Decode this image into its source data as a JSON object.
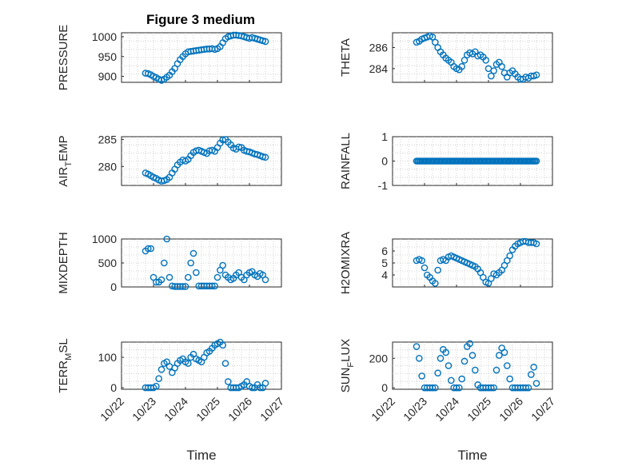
{
  "figure_title": "Figure 3 medium",
  "colors": {
    "marker": "#0072BD",
    "axis": "#262626",
    "grid": "#c8c8c8"
  },
  "chart_data": [
    {
      "id": "pressure",
      "type": "scatter",
      "title": "Figure 3 medium",
      "ylabel": "PRESSURE",
      "ylim": [
        885,
        1010
      ],
      "yticks": [
        900,
        950,
        1000
      ],
      "yticklabels": [
        "900",
        "950",
        "1000"
      ],
      "xlim": [
        "10/22",
        "10/27"
      ],
      "xticklabels": [],
      "x": [
        "10/22 18:00",
        "10/22 20:00",
        "10/22 22:00",
        "10/23 00:00",
        "10/23 02:00",
        "10/23 04:00",
        "10/23 06:00",
        "10/23 08:00",
        "10/23 10:00",
        "10/23 12:00",
        "10/23 14:00",
        "10/23 16:00",
        "10/23 18:00",
        "10/23 20:00",
        "10/23 22:00",
        "10/24 00:00",
        "10/24 02:00",
        "10/24 04:00",
        "10/24 06:00",
        "10/24 08:00",
        "10/24 10:00",
        "10/24 12:00",
        "10/24 14:00",
        "10/24 16:00",
        "10/24 18:00",
        "10/24 20:00",
        "10/24 22:00",
        "10/25 00:00",
        "10/25 02:00",
        "10/25 04:00",
        "10/25 06:00",
        "10/25 08:00",
        "10/25 10:00",
        "10/25 12:00",
        "10/25 14:00",
        "10/25 16:00",
        "10/25 18:00",
        "10/25 20:00",
        "10/25 22:00",
        "10/26 00:00",
        "10/26 02:00",
        "10/26 04:00",
        "10/26 06:00",
        "10/26 08:00",
        "10/26 10:00",
        "10/26 12:00"
      ],
      "y": [
        908,
        907,
        904,
        900,
        897,
        893,
        890,
        893,
        898,
        903,
        912,
        920,
        932,
        942,
        950,
        957,
        962,
        963,
        964,
        965,
        966,
        967,
        968,
        969,
        969,
        970,
        968,
        970,
        975,
        985,
        995,
        1000,
        1002,
        1004,
        1004,
        1003,
        1002,
        1000,
        998,
        996,
        998,
        996,
        994,
        992,
        990,
        988
      ]
    },
    {
      "id": "theta",
      "type": "scatter",
      "ylabel": "THETA",
      "ylim": [
        282.7,
        287.4
      ],
      "yticks": [
        284,
        286
      ],
      "yticklabels": [
        "284",
        "286"
      ],
      "xlim": [
        "10/22",
        "10/27"
      ],
      "xticklabels": [],
      "x": [
        "10/22 18:00",
        "10/22 20:00",
        "10/22 22:00",
        "10/23 00:00",
        "10/23 02:00",
        "10/23 04:00",
        "10/23 06:00",
        "10/23 08:00",
        "10/23 10:00",
        "10/23 12:00",
        "10/23 14:00",
        "10/23 16:00",
        "10/23 18:00",
        "10/23 20:00",
        "10/23 22:00",
        "10/24 00:00",
        "10/24 02:00",
        "10/24 04:00",
        "10/24 06:00",
        "10/24 08:00",
        "10/24 10:00",
        "10/24 12:00",
        "10/24 14:00",
        "10/24 16:00",
        "10/24 18:00",
        "10/24 20:00",
        "10/24 22:00",
        "10/25 00:00",
        "10/25 02:00",
        "10/25 04:00",
        "10/25 06:00",
        "10/25 08:00",
        "10/25 10:00",
        "10/25 12:00",
        "10/25 14:00",
        "10/25 16:00",
        "10/25 18:00",
        "10/25 20:00",
        "10/25 22:00",
        "10/26 00:00",
        "10/26 02:00",
        "10/26 04:00",
        "10/26 06:00",
        "10/26 08:00",
        "10/26 10:00",
        "10/26 12:00"
      ],
      "y": [
        286.5,
        286.6,
        286.8,
        286.9,
        287.0,
        287.1,
        287.0,
        286.5,
        286.0,
        285.6,
        285.3,
        285.0,
        284.8,
        284.6,
        284.2,
        284.0,
        283.9,
        284.2,
        284.8,
        285.3,
        285.5,
        285.4,
        285.6,
        285.2,
        285.3,
        285.1,
        284.8,
        284.0,
        283.3,
        283.8,
        284.4,
        284.6,
        284.2,
        283.6,
        283.2,
        283.6,
        283.8,
        283.5,
        283.2,
        283.0,
        283.0,
        283.2,
        283.1,
        283.3,
        283.3,
        283.4
      ]
    },
    {
      "id": "air_temp",
      "type": "scatter",
      "ylabel": "AIR",
      "ylabel_sub": "T",
      "ylabel_rest": "EMP",
      "ylim": [
        276.5,
        285.5
      ],
      "yticks": [
        280,
        285
      ],
      "yticklabels": [
        "280",
        "285"
      ],
      "xlim": [
        "10/22",
        "10/27"
      ],
      "xticklabels": [],
      "x": [
        "10/22 18:00",
        "10/22 20:00",
        "10/22 22:00",
        "10/23 00:00",
        "10/23 02:00",
        "10/23 04:00",
        "10/23 06:00",
        "10/23 08:00",
        "10/23 10:00",
        "10/23 12:00",
        "10/23 14:00",
        "10/23 16:00",
        "10/23 18:00",
        "10/23 20:00",
        "10/23 22:00",
        "10/24 00:00",
        "10/24 02:00",
        "10/24 04:00",
        "10/24 06:00",
        "10/24 08:00",
        "10/24 10:00",
        "10/24 12:00",
        "10/24 14:00",
        "10/24 16:00",
        "10/24 18:00",
        "10/24 20:00",
        "10/24 22:00",
        "10/25 00:00",
        "10/25 02:00",
        "10/25 04:00",
        "10/25 06:00",
        "10/25 08:00",
        "10/25 10:00",
        "10/25 12:00",
        "10/25 14:00",
        "10/25 16:00",
        "10/25 18:00",
        "10/25 20:00",
        "10/25 22:00",
        "10/26 00:00",
        "10/26 02:00",
        "10/26 04:00",
        "10/26 06:00",
        "10/26 08:00",
        "10/26 10:00",
        "10/26 12:00"
      ],
      "y": [
        278.8,
        278.6,
        278.3,
        278.0,
        277.8,
        277.5,
        277.3,
        277.4,
        277.6,
        278.0,
        278.8,
        279.5,
        280.3,
        280.8,
        281.2,
        281.0,
        281.3,
        282.0,
        282.6,
        282.9,
        283.0,
        282.8,
        282.6,
        282.4,
        282.9,
        283.0,
        282.8,
        283.5,
        284.3,
        284.9,
        285.0,
        284.5,
        284.0,
        283.4,
        283.2,
        283.6,
        283.5,
        283.0,
        282.8,
        282.7,
        282.5,
        282.3,
        282.2,
        282.0,
        281.8,
        281.7
      ]
    },
    {
      "id": "rainfall",
      "type": "scatter",
      "ylabel": "RAINFALL",
      "ylim": [
        -1,
        1
      ],
      "yticks": [
        -1,
        0,
        1
      ],
      "yticklabels": [
        "-1",
        "0",
        "1"
      ],
      "xlim": [
        "10/22",
        "10/27"
      ],
      "xticklabels": [],
      "x_range": [
        "10/22 18:00",
        "10/26 12:00"
      ],
      "x_step_hours": 1,
      "y_constant": 0
    },
    {
      "id": "mixdepth",
      "type": "scatter",
      "ylabel": "MIXDEPTH",
      "ylim": [
        0,
        1000
      ],
      "yticks": [
        0,
        500,
        1000
      ],
      "yticklabels": [
        "0",
        "500",
        "1000"
      ],
      "xlim": [
        "10/22",
        "10/27"
      ],
      "xticklabels": [],
      "x": [
        "10/22 18:00",
        "10/22 20:00",
        "10/22 22:00",
        "10/23 00:00",
        "10/23 02:00",
        "10/23 04:00",
        "10/23 06:00",
        "10/23 08:00",
        "10/23 10:00",
        "10/23 12:00",
        "10/23 14:00",
        "10/23 16:00",
        "10/23 18:00",
        "10/23 20:00",
        "10/23 22:00",
        "10/24 00:00",
        "10/24 02:00",
        "10/24 04:00",
        "10/24 06:00",
        "10/24 08:00",
        "10/24 10:00",
        "10/24 12:00",
        "10/24 14:00",
        "10/24 16:00",
        "10/24 18:00",
        "10/24 20:00",
        "10/24 22:00",
        "10/25 00:00",
        "10/25 02:00",
        "10/25 04:00",
        "10/25 06:00",
        "10/25 08:00",
        "10/25 10:00",
        "10/25 12:00",
        "10/25 14:00",
        "10/25 16:00",
        "10/25 18:00",
        "10/25 20:00",
        "10/25 22:00",
        "10/26 00:00",
        "10/26 02:00",
        "10/26 04:00",
        "10/26 06:00",
        "10/26 08:00",
        "10/26 10:00",
        "10/26 12:00"
      ],
      "y": [
        750,
        800,
        800,
        200,
        100,
        100,
        150,
        500,
        1000,
        200,
        20,
        10,
        10,
        10,
        10,
        10,
        200,
        500,
        700,
        300,
        20,
        20,
        20,
        20,
        20,
        20,
        20,
        200,
        350,
        450,
        250,
        200,
        150,
        180,
        250,
        300,
        200,
        150,
        250,
        300,
        320,
        250,
        220,
        280,
        250,
        150
      ]
    },
    {
      "id": "h2omixra",
      "type": "scatter",
      "ylabel": "H2OMIXRA",
      "ylim": [
        3,
        7
      ],
      "yticks": [
        4,
        5,
        6
      ],
      "yticklabels": [
        "4",
        "5",
        "6"
      ],
      "xlim": [
        "10/22",
        "10/27"
      ],
      "xticklabels": [],
      "x": [
        "10/22 18:00",
        "10/22 20:00",
        "10/22 22:00",
        "10/23 00:00",
        "10/23 02:00",
        "10/23 04:00",
        "10/23 06:00",
        "10/23 08:00",
        "10/23 10:00",
        "10/23 12:00",
        "10/23 14:00",
        "10/23 16:00",
        "10/23 18:00",
        "10/23 20:00",
        "10/23 22:00",
        "10/24 00:00",
        "10/24 02:00",
        "10/24 04:00",
        "10/24 06:00",
        "10/24 08:00",
        "10/24 10:00",
        "10/24 12:00",
        "10/24 14:00",
        "10/24 16:00",
        "10/24 18:00",
        "10/24 20:00",
        "10/24 22:00",
        "10/25 00:00",
        "10/25 02:00",
        "10/25 04:00",
        "10/25 06:00",
        "10/25 08:00",
        "10/25 10:00",
        "10/25 12:00",
        "10/25 14:00",
        "10/25 16:00",
        "10/25 18:00",
        "10/25 20:00",
        "10/25 22:00",
        "10/26 00:00",
        "10/26 02:00",
        "10/26 04:00",
        "10/26 06:00",
        "10/26 08:00",
        "10/26 10:00",
        "10/26 12:00"
      ],
      "y": [
        5.2,
        5.3,
        5.2,
        4.6,
        4.0,
        3.8,
        3.5,
        3.3,
        4.4,
        5.2,
        5.3,
        5.2,
        5.5,
        5.6,
        5.5,
        5.4,
        5.3,
        5.2,
        5.1,
        5.0,
        4.9,
        4.8,
        4.7,
        4.5,
        4.2,
        3.8,
        3.4,
        3.3,
        3.7,
        4.1,
        4.0,
        4.2,
        4.4,
        4.8,
        5.2,
        5.6,
        6.1,
        6.4,
        6.6,
        6.7,
        6.8,
        6.8,
        6.7,
        6.7,
        6.7,
        6.6
      ]
    },
    {
      "id": "terrmsl",
      "type": "scatter",
      "ylabel": "TERR",
      "ylabel_sub": "M",
      "ylabel_rest": "SL",
      "ylim": [
        -5,
        150
      ],
      "yticks": [
        0,
        100
      ],
      "yticklabels": [
        "0",
        "100"
      ],
      "xlim": [
        "10/22",
        "10/27"
      ],
      "xticks": [
        "10/22",
        "10/23",
        "10/24",
        "10/25",
        "10/26",
        "10/27"
      ],
      "xticklabels": [
        "10/22",
        "10/23",
        "10/24",
        "10/25",
        "10/26",
        "10/27"
      ],
      "xlabel": "Time",
      "x": [
        "10/22 18:00",
        "10/22 20:00",
        "10/22 22:00",
        "10/23 00:00",
        "10/23 02:00",
        "10/23 04:00",
        "10/23 06:00",
        "10/23 08:00",
        "10/23 10:00",
        "10/23 12:00",
        "10/23 14:00",
        "10/23 16:00",
        "10/23 18:00",
        "10/23 20:00",
        "10/23 22:00",
        "10/24 00:00",
        "10/24 02:00",
        "10/24 04:00",
        "10/24 06:00",
        "10/24 08:00",
        "10/24 10:00",
        "10/24 12:00",
        "10/24 14:00",
        "10/24 16:00",
        "10/24 18:00",
        "10/24 20:00",
        "10/24 22:00",
        "10/25 00:00",
        "10/25 02:00",
        "10/25 04:00",
        "10/25 06:00",
        "10/25 08:00",
        "10/25 10:00",
        "10/25 12:00",
        "10/25 14:00",
        "10/25 16:00",
        "10/25 18:00",
        "10/25 20:00",
        "10/25 22:00",
        "10/26 00:00",
        "10/26 02:00",
        "10/26 04:00",
        "10/26 06:00",
        "10/26 08:00",
        "10/26 10:00",
        "10/26 12:00"
      ],
      "y": [
        0,
        0,
        0,
        0,
        5,
        30,
        60,
        80,
        85,
        70,
        50,
        65,
        80,
        90,
        95,
        85,
        80,
        100,
        110,
        95,
        90,
        85,
        100,
        115,
        120,
        130,
        140,
        145,
        150,
        140,
        80,
        20,
        0,
        0,
        0,
        0,
        5,
        10,
        20,
        5,
        0,
        0,
        10,
        0,
        0,
        15
      ]
    },
    {
      "id": "sunflux",
      "type": "scatter",
      "ylabel": "SUN",
      "ylabel_sub": "F",
      "ylabel_rest": "LUX",
      "ylim": [
        -10,
        310
      ],
      "yticks": [
        0,
        200
      ],
      "yticklabels": [
        "0",
        "200"
      ],
      "xlim": [
        "10/22",
        "10/27"
      ],
      "xticks": [
        "10/22",
        "10/23",
        "10/24",
        "10/25",
        "10/26",
        "10/27"
      ],
      "xticklabels": [
        "10/22",
        "10/23",
        "10/24",
        "10/25",
        "10/26",
        "10/27"
      ],
      "xlabel": "Time",
      "x": [
        "10/22 18:00",
        "10/22 20:00",
        "10/22 22:00",
        "10/23 00:00",
        "10/23 02:00",
        "10/23 04:00",
        "10/23 06:00",
        "10/23 08:00",
        "10/23 10:00",
        "10/23 12:00",
        "10/23 14:00",
        "10/23 16:00",
        "10/23 18:00",
        "10/23 20:00",
        "10/23 22:00",
        "10/24 00:00",
        "10/24 02:00",
        "10/24 04:00",
        "10/24 06:00",
        "10/24 08:00",
        "10/24 10:00",
        "10/24 12:00",
        "10/24 14:00",
        "10/24 16:00",
        "10/24 18:00",
        "10/24 20:00",
        "10/24 22:00",
        "10/25 00:00",
        "10/25 02:00",
        "10/25 04:00",
        "10/25 06:00",
        "10/25 08:00",
        "10/25 10:00",
        "10/25 12:00",
        "10/25 14:00",
        "10/25 16:00",
        "10/25 18:00",
        "10/25 20:00",
        "10/25 22:00",
        "10/26 00:00",
        "10/26 02:00",
        "10/26 04:00",
        "10/26 06:00",
        "10/26 08:00",
        "10/26 10:00",
        "10/26 12:00"
      ],
      "y": [
        280,
        200,
        80,
        0,
        0,
        0,
        0,
        0,
        100,
        200,
        260,
        240,
        150,
        50,
        0,
        0,
        0,
        60,
        180,
        280,
        300,
        220,
        120,
        20,
        0,
        0,
        0,
        0,
        0,
        0,
        120,
        220,
        270,
        240,
        150,
        60,
        0,
        0,
        0,
        0,
        0,
        0,
        0,
        90,
        140,
        30
      ]
    }
  ]
}
